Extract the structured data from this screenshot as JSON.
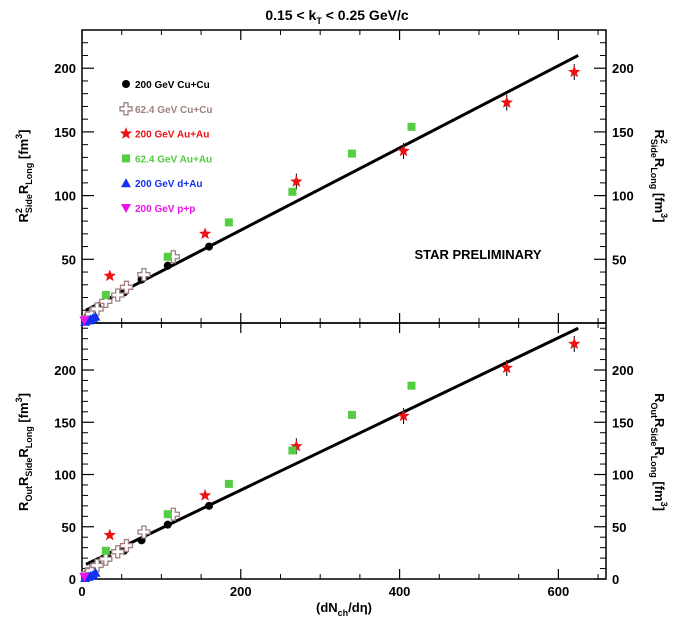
{
  "title": "0.15 < kT < 0.25 GeV/c",
  "title_parts": {
    "pre": "0.15 < k",
    "sub": "T",
    "post": " < 0.25 GeV/c"
  },
  "annotation": "STAR PRELIMINARY",
  "xlabel_parts": {
    "pre": "(dN",
    "sub": "ch",
    "post": "/dη)"
  },
  "top_ylabel": {
    "a": "R",
    "a_sup": "2",
    "a_sub": "Side",
    "b": "R",
    "b_sub": "Long",
    "unit": " [fm",
    "unit_sup": "3",
    "unit_end": "]"
  },
  "bottom_ylabel": {
    "a": "R",
    "a_sub": "Out",
    "b": "R",
    "b_sub": "Side",
    "c": "R",
    "c_sub": "Long",
    "unit": " [fm",
    "unit_sup": "3",
    "unit_end": "]"
  },
  "colors": {
    "cucu200": "#000000",
    "cucu62": "#a08080",
    "auau200": "#ee1111",
    "auau62": "#55cc44",
    "dau200": "#1133ee",
    "pp200": "#ee11ee",
    "axis": "#000000"
  },
  "legend": [
    {
      "key": "cucu200",
      "label": "200 GeV Cu+Cu",
      "marker": "circle"
    },
    {
      "key": "cucu62",
      "label": "62.4 GeV Cu+Cu",
      "marker": "open-cross"
    },
    {
      "key": "auau200",
      "label": "200 GeV Au+Au",
      "marker": "star"
    },
    {
      "key": "auau62",
      "label": "62.4 GeV Au+Au",
      "marker": "square"
    },
    {
      "key": "dau200",
      "label": "200 GeV d+Au",
      "marker": "triangle-up"
    },
    {
      "key": "pp200",
      "label": "200 GeV p+p",
      "marker": "triangle-down"
    }
  ],
  "chart_data": [
    {
      "type": "scatter",
      "panel": "top",
      "xlim": [
        0,
        660
      ],
      "ylim": [
        0,
        230
      ],
      "xticks": [
        0,
        200,
        400,
        600
      ],
      "yticks": [
        50,
        100,
        150,
        200
      ],
      "fit_line": {
        "x": [
          5,
          625
        ],
        "y": [
          10,
          210
        ]
      },
      "series": [
        {
          "key": "cucu200",
          "name": "200 GeV Cu+Cu",
          "x": [
            7,
            13,
            20,
            33,
            53,
            75,
            108,
            160
          ],
          "y": [
            5,
            8,
            12,
            18,
            24,
            34,
            45,
            60
          ]
        },
        {
          "key": "cucu62",
          "name": "62.4 GeV Cu+Cu",
          "x": [
            7,
            12,
            19,
            30,
            45,
            56,
            78,
            115
          ],
          "y": [
            4,
            7,
            11,
            17,
            22,
            28,
            38,
            52
          ]
        },
        {
          "key": "auau200",
          "name": "200 GeV Au+Au",
          "x": [
            35,
            155,
            270,
            405,
            535,
            620
          ],
          "y": [
            37,
            70,
            111,
            135,
            173,
            197
          ]
        },
        {
          "key": "auau62",
          "name": "62.4 GeV Au+Au",
          "x": [
            30,
            108,
            185,
            265,
            340,
            415
          ],
          "y": [
            22,
            52,
            79,
            103,
            133,
            154
          ]
        },
        {
          "key": "dau200",
          "name": "200 GeV d+Au",
          "x": [
            4,
            8,
            11,
            14,
            17
          ],
          "y": [
            1,
            2,
            3,
            4,
            5
          ]
        },
        {
          "key": "pp200",
          "name": "200 GeV p+p",
          "x": [
            3
          ],
          "y": [
            2
          ]
        }
      ]
    },
    {
      "type": "scatter",
      "panel": "bottom",
      "xlim": [
        0,
        660
      ],
      "ylim": [
        0,
        245
      ],
      "xticks": [
        0,
        200,
        400,
        600
      ],
      "yticks": [
        0,
        50,
        100,
        150,
        200
      ],
      "fit_line": {
        "x": [
          5,
          625
        ],
        "y": [
          14,
          240
        ]
      },
      "series": [
        {
          "key": "cucu200",
          "name": "200 GeV Cu+Cu",
          "x": [
            7,
            13,
            20,
            33,
            53,
            75,
            108,
            160
          ],
          "y": [
            6,
            9,
            14,
            20,
            27,
            37,
            52,
            70
          ]
        },
        {
          "key": "cucu62",
          "name": "62.4 GeV Cu+Cu",
          "x": [
            7,
            12,
            19,
            30,
            45,
            56,
            78,
            115
          ],
          "y": [
            5,
            8,
            13,
            19,
            26,
            32,
            45,
            62
          ]
        },
        {
          "key": "auau200",
          "name": "200 GeV Au+Au",
          "x": [
            35,
            155,
            270,
            405,
            535,
            620
          ],
          "y": [
            42,
            80,
            127,
            156,
            202,
            225
          ]
        },
        {
          "key": "auau62",
          "name": "62.4 GeV Au+Au",
          "x": [
            30,
            108,
            185,
            265,
            340,
            415
          ],
          "y": [
            27,
            62,
            91,
            123,
            157,
            185
          ]
        },
        {
          "key": "dau200",
          "name": "200 GeV d+Au",
          "x": [
            4,
            8,
            11,
            14,
            17
          ],
          "y": [
            1,
            2,
            3,
            4,
            6
          ]
        },
        {
          "key": "pp200",
          "name": "200 GeV p+p",
          "x": [
            3
          ],
          "y": [
            2
          ]
        }
      ]
    }
  ]
}
